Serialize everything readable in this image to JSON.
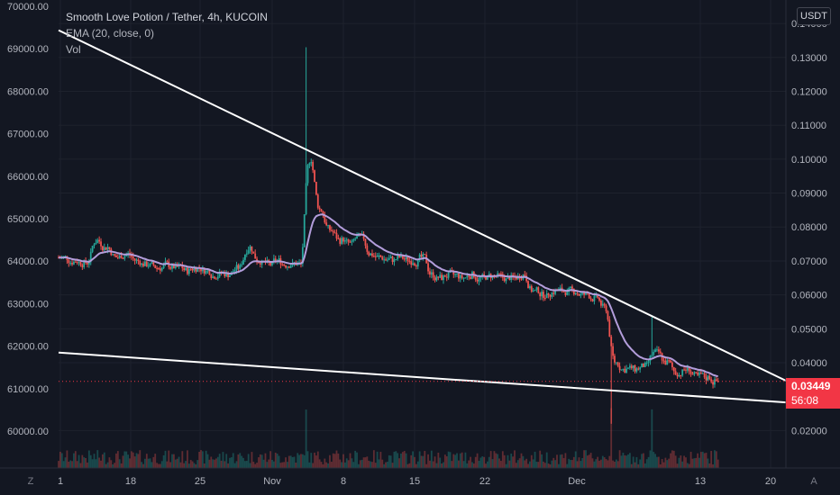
{
  "legend": {
    "title": "Smooth Love Potion / Tether, 4h, KUCOIN",
    "ema": "EMA (20, close, 0)",
    "vol": "Vol"
  },
  "currency_label": "USDT",
  "last_price": {
    "value": "0.03449",
    "countdown": "56:08",
    "color": "#f23645"
  },
  "left_axis_ticks": [
    "70000.00",
    "69000.00",
    "68000.00",
    "67000.00",
    "66000.00",
    "65000.00",
    "64000.00",
    "63000.00",
    "62000.00",
    "61000.00",
    "60000.00"
  ],
  "right_axis_ticks": [
    "0.14000",
    "0.13000",
    "0.12000",
    "0.11000",
    "0.10000",
    "0.09000",
    "0.08000",
    "0.07000",
    "0.06000",
    "0.05000",
    "0.04000",
    "0.02000"
  ],
  "x_axis_ticks": [
    "1",
    "18",
    "25",
    "Nov",
    "8",
    "15",
    "22",
    "Dec",
    "13",
    "20"
  ],
  "bottom_corner_left": "Z",
  "bottom_corner_right": "A",
  "colors": {
    "up": "#26a69a",
    "down": "#ef5350",
    "ema": "#b39ddb",
    "trendline": "#ffffff",
    "grid": "#1e222d"
  },
  "chart_data": {
    "type": "candlestick",
    "title": "Smooth Love Potion / Tether, 4h, KUCOIN",
    "interval": "4h",
    "y_unit": "USDT",
    "ylim": [
      0.0148,
      0.1448
    ],
    "x_range": [
      "2021-10-11",
      "2021-12-20"
    ],
    "close_series": [
      {
        "date": "2021-10-11",
        "close": 0.071
      },
      {
        "date": "2021-10-12",
        "close": 0.07
      },
      {
        "date": "2021-10-13",
        "close": 0.0695
      },
      {
        "date": "2021-10-14",
        "close": 0.076
      },
      {
        "date": "2021-10-15",
        "close": 0.074
      },
      {
        "date": "2021-10-16",
        "close": 0.071
      },
      {
        "date": "2021-10-17",
        "close": 0.072
      },
      {
        "date": "2021-10-18",
        "close": 0.07
      },
      {
        "date": "2021-10-19",
        "close": 0.069
      },
      {
        "date": "2021-10-20",
        "close": 0.068
      },
      {
        "date": "2021-10-21",
        "close": 0.069
      },
      {
        "date": "2021-10-22",
        "close": 0.068
      },
      {
        "date": "2021-10-23",
        "close": 0.067
      },
      {
        "date": "2021-10-24",
        "close": 0.068
      },
      {
        "date": "2021-10-25",
        "close": 0.067
      },
      {
        "date": "2021-10-26",
        "close": 0.066
      },
      {
        "date": "2021-10-27",
        "close": 0.066
      },
      {
        "date": "2021-10-28",
        "close": 0.068
      },
      {
        "date": "2021-10-29",
        "close": 0.074
      },
      {
        "date": "2021-10-30",
        "close": 0.07
      },
      {
        "date": "2021-10-31",
        "close": 0.069
      },
      {
        "date": "2021-11-01",
        "close": 0.07
      },
      {
        "date": "2021-11-02",
        "close": 0.069
      },
      {
        "date": "2021-11-03",
        "close": 0.069
      },
      {
        "date": "2021-11-04",
        "close": 0.1
      },
      {
        "date": "2021-11-05",
        "close": 0.085
      },
      {
        "date": "2021-11-06",
        "close": 0.079
      },
      {
        "date": "2021-11-07",
        "close": 0.076
      },
      {
        "date": "2021-11-08",
        "close": 0.075
      },
      {
        "date": "2021-11-09",
        "close": 0.077
      },
      {
        "date": "2021-11-10",
        "close": 0.072
      },
      {
        "date": "2021-11-11",
        "close": 0.071
      },
      {
        "date": "2021-11-12",
        "close": 0.0705
      },
      {
        "date": "2021-11-13",
        "close": 0.071
      },
      {
        "date": "2021-11-14",
        "close": 0.07
      },
      {
        "date": "2021-11-15",
        "close": 0.071
      },
      {
        "date": "2021-11-16",
        "close": 0.066
      },
      {
        "date": "2021-11-17",
        "close": 0.065
      },
      {
        "date": "2021-11-18",
        "close": 0.066
      },
      {
        "date": "2021-11-19",
        "close": 0.065
      },
      {
        "date": "2021-11-20",
        "close": 0.066
      },
      {
        "date": "2021-11-21",
        "close": 0.065
      },
      {
        "date": "2021-11-22",
        "close": 0.0655
      },
      {
        "date": "2021-11-23",
        "close": 0.065
      },
      {
        "date": "2021-11-24",
        "close": 0.065
      },
      {
        "date": "2021-11-25",
        "close": 0.066
      },
      {
        "date": "2021-11-26",
        "close": 0.061
      },
      {
        "date": "2021-11-27",
        "close": 0.06
      },
      {
        "date": "2021-11-28",
        "close": 0.061
      },
      {
        "date": "2021-11-29",
        "close": 0.061
      },
      {
        "date": "2021-11-30",
        "close": 0.061
      },
      {
        "date": "2021-12-01",
        "close": 0.06
      },
      {
        "date": "2021-12-02",
        "close": 0.059
      },
      {
        "date": "2021-12-03",
        "close": 0.056
      },
      {
        "date": "2021-12-04",
        "close": 0.04
      },
      {
        "date": "2021-12-05",
        "close": 0.038
      },
      {
        "date": "2021-12-06",
        "close": 0.038
      },
      {
        "date": "2021-12-07",
        "close": 0.039
      },
      {
        "date": "2021-12-08",
        "close": 0.043
      },
      {
        "date": "2021-12-09",
        "close": 0.04
      },
      {
        "date": "2021-12-10",
        "close": 0.037
      },
      {
        "date": "2021-12-11",
        "close": 0.038
      },
      {
        "date": "2021-12-12",
        "close": 0.036
      },
      {
        "date": "2021-12-13",
        "close": 0.0355
      },
      {
        "date": "2021-12-14",
        "close": 0.0345
      }
    ],
    "notable_extremes": [
      {
        "date": "2021-11-04",
        "high": 0.133
      },
      {
        "date": "2021-12-04",
        "low": 0.022
      },
      {
        "date": "2021-12-08",
        "high": 0.054
      }
    ],
    "indicators": {
      "ema": {
        "name": "EMA (20, close, 0)",
        "period": 20
      },
      "volume": {
        "name": "Vol"
      }
    },
    "trendlines": [
      {
        "from": {
          "date": "2021-10-11",
          "value": 0.138
        },
        "to": {
          "date": "2021-12-20",
          "value": 0.0347
        }
      },
      {
        "from": {
          "date": "2021-10-11",
          "value": 0.043
        },
        "to": {
          "date": "2021-12-20",
          "value": 0.0283
        }
      }
    ],
    "last_price": 0.03449,
    "countdown": "56:08",
    "secondary_axis": {
      "label": "left",
      "ticks": [
        70000,
        69000,
        68000,
        67000,
        66000,
        65000,
        64000,
        63000,
        62000,
        61000,
        60000
      ]
    },
    "grid": true
  }
}
